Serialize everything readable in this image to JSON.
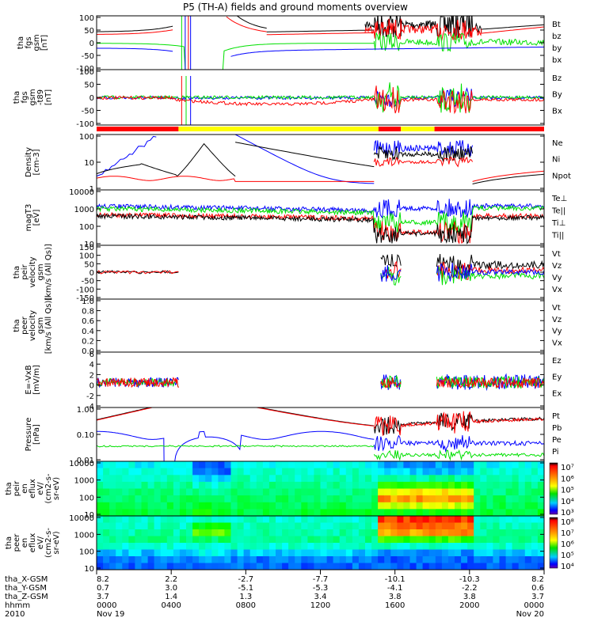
{
  "chart_data": {
    "type": "line",
    "title": "P5 (TH-A) fields and ground moments overview",
    "colors": {
      "black": "#000000",
      "red": "#ff0000",
      "green": "#00e000",
      "blue": "#0000ff",
      "yellow": "#ffff00"
    },
    "panels": [
      {
        "id": "fgs",
        "ylabel": [
          "tha",
          "fgs",
          "gsm",
          "[nT]"
        ],
        "yticks": [
          "100",
          "50",
          "0",
          "-50",
          "-100"
        ],
        "ylim": [
          -100,
          100
        ],
        "log": false,
        "legend": [
          {
            "text": "Bt",
            "color": "#000000"
          },
          {
            "text": "bz",
            "color": "#ff0000"
          },
          {
            "text": "by",
            "color": "#00e000"
          },
          {
            "text": "bx",
            "color": "#0000ff"
          }
        ]
      },
      {
        "id": "fgs_t89",
        "ylabel": [
          "tha",
          "fgs",
          "gsm",
          "-t89",
          "[nT]"
        ],
        "yticks": [
          "100",
          "50",
          "0",
          "-50",
          "-100"
        ],
        "ylim": [
          -120,
          120
        ],
        "log": false,
        "legend": [
          {
            "text": "Bz",
            "color": "#ff0000"
          },
          {
            "text": "By",
            "color": "#00e000"
          },
          {
            "text": "Bx",
            "color": "#0000ff"
          }
        ]
      },
      {
        "id": "density",
        "ylabel": [
          "Density",
          "[cm-3]"
        ],
        "yticks": [
          "100",
          "10",
          "1"
        ],
        "ylim": [
          0.3,
          200
        ],
        "log": true,
        "legend": [
          {
            "text": "Ne",
            "color": "#ff0000"
          },
          {
            "text": "Ni",
            "color": "#000000"
          },
          {
            "text": "Npot",
            "color": "#0000ff"
          }
        ]
      },
      {
        "id": "temp",
        "ylabel": [
          "magT3",
          "[eV]"
        ],
        "yticks": [
          "10000",
          "1000",
          "100",
          "10"
        ],
        "ylim": [
          8,
          20000
        ],
        "log": true,
        "legend": [
          {
            "text": "Te⊥",
            "color": "#ff0000"
          },
          {
            "text": "Te||",
            "color": "#000000"
          },
          {
            "text": "Ti⊥",
            "color": "#0000ff"
          },
          {
            "text": "Ti||",
            "color": "#00e000"
          }
        ]
      },
      {
        "id": "peir_vel",
        "ylabel": [
          "tha",
          "peir",
          "velocity",
          "gsm",
          "[km/s (All Qs)]"
        ],
        "yticks": [
          "150",
          "100",
          "50",
          "0",
          "-50",
          "-100",
          "-150"
        ],
        "ylim": [
          -150,
          150
        ],
        "log": false,
        "legend": [
          {
            "text": "Vt",
            "color": "#000000"
          },
          {
            "text": "Vz",
            "color": "#ff0000"
          },
          {
            "text": "Vy",
            "color": "#00e000"
          },
          {
            "text": "Vx",
            "color": "#0000ff"
          }
        ]
      },
      {
        "id": "peer_vel",
        "ylabel": [
          "tha",
          "peer",
          "velocity",
          "gsm",
          "[km/s (All Qs)]"
        ],
        "yticks": [
          "1.0",
          "0.8",
          "0.6",
          "0.4",
          "0.2",
          "0.0"
        ],
        "ylim": [
          0,
          1
        ],
        "log": false,
        "legend": [
          {
            "text": "Vt",
            "color": "#000000"
          },
          {
            "text": "Vz",
            "color": "#ff0000"
          },
          {
            "text": "Vy",
            "color": "#00e000"
          },
          {
            "text": "Vx",
            "color": "#0000ff"
          }
        ]
      },
      {
        "id": "efield",
        "ylabel": [
          "E=-VxB",
          "[mV/m]"
        ],
        "yticks": [
          "6",
          "4",
          "2",
          "0",
          "-2",
          "-4"
        ],
        "ylim": [
          -5,
          6
        ],
        "log": false,
        "legend": [
          {
            "text": "Ez",
            "color": "#ff0000"
          },
          {
            "text": "Ey",
            "color": "#00e000"
          },
          {
            "text": "Ex",
            "color": "#0000ff"
          }
        ]
      },
      {
        "id": "pressure",
        "ylabel": [
          "Pressure",
          "[nPa]"
        ],
        "yticks": [
          "1.00",
          "0.10",
          "0.01"
        ],
        "ylim": [
          0.005,
          8
        ],
        "log": true,
        "legend": [
          {
            "text": "Pt",
            "color": "#000000"
          },
          {
            "text": "Pb",
            "color": "#ff0000"
          },
          {
            "text": "Pe",
            "color": "#00e000"
          },
          {
            "text": "Pi",
            "color": "#0000ff"
          }
        ]
      },
      {
        "id": "peir_spec",
        "ylabel": [
          "tha",
          "peir",
          "en",
          "eflux",
          "eV/",
          "(cm2-s-",
          "sr-eV)"
        ],
        "yticks": [
          "10000",
          "1000",
          "100",
          "10"
        ],
        "log": true,
        "cbar": [
          "10⁷",
          "10⁶",
          "10⁵",
          "10⁴",
          "10³"
        ]
      },
      {
        "id": "peer_spec",
        "ylabel": [
          "tha",
          "peer",
          "en",
          "eflux",
          "eV/",
          "(cm2-s-",
          "sr-eV)"
        ],
        "yticks": [
          "10000",
          "1000",
          "100",
          "10"
        ],
        "log": true,
        "cbar": [
          "10⁸",
          "10⁷",
          "10⁶",
          "10⁵",
          "10⁴"
        ]
      }
    ],
    "mode_bar": [
      {
        "from": 0,
        "to": 0.183,
        "color": "#ff0000"
      },
      {
        "from": 0.183,
        "to": 0.63,
        "color": "#ffff00"
      },
      {
        "from": 0.63,
        "to": 0.68,
        "color": "#ff0000"
      },
      {
        "from": 0.68,
        "to": 0.755,
        "color": "#ffff00"
      },
      {
        "from": 0.755,
        "to": 1,
        "color": "#ff0000"
      }
    ],
    "x_axis": {
      "row_labels": [
        "tha_X-GSM",
        "tha_Y-GSM",
        "tha_Z-GSM",
        "hhmm",
        "2010"
      ],
      "ticks": [
        {
          "pos": 0,
          "vals": [
            "8.2",
            "0.7",
            "3.7",
            "0000",
            "Nov 19"
          ]
        },
        {
          "pos": 0.1667,
          "vals": [
            "2.2",
            "3.0",
            "1.4",
            "0400",
            ""
          ]
        },
        {
          "pos": 0.3333,
          "vals": [
            "-2.7",
            "-5.1",
            "1.3",
            "0800",
            ""
          ]
        },
        {
          "pos": 0.5,
          "vals": [
            "-7.7",
            "-5.3",
            "3.4",
            "1200",
            ""
          ]
        },
        {
          "pos": 0.6667,
          "vals": [
            "-10.1",
            "-4.1",
            "3.8",
            "1600",
            ""
          ]
        },
        {
          "pos": 0.8333,
          "vals": [
            "-10.3",
            "-2.2",
            "3.8",
            "2000",
            ""
          ]
        },
        {
          "pos": 1,
          "vals": [
            "8.2",
            "0.6",
            "3.7",
            "0000",
            "Nov 20"
          ]
        }
      ]
    }
  }
}
